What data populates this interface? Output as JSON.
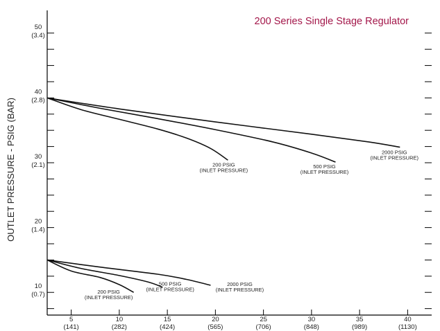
{
  "chart_data": {
    "type": "line",
    "title": "200 Series Single Stage Regulator",
    "title_color": "#a3174a",
    "ylabel": "OUTLET PRESSURE - PSIG (BAR)",
    "xlabel": "",
    "xlim": [
      2.5,
      42.5
    ],
    "ylim": [
      6.5,
      53.5
    ],
    "grid": false,
    "x_ticks": [
      {
        "value": 5,
        "label": "5",
        "sub": "(141)"
      },
      {
        "value": 10,
        "label": "10",
        "sub": "(282)"
      },
      {
        "value": 15,
        "label": "15",
        "sub": "(424)"
      },
      {
        "value": 20,
        "label": "20",
        "sub": "(565)"
      },
      {
        "value": 25,
        "label": "25",
        "sub": "(706)"
      },
      {
        "value": 30,
        "label": "30",
        "sub": "(848)"
      },
      {
        "value": 35,
        "label": "35",
        "sub": "(989)"
      },
      {
        "value": 40,
        "label": "40",
        "sub": "(1130)"
      }
    ],
    "y_ticks": [
      {
        "value": 10,
        "label": "10",
        "sub": "(0.7)"
      },
      {
        "value": 20,
        "label": "20",
        "sub": "(1.4)"
      },
      {
        "value": 30,
        "label": "30",
        "sub": "(2.1)"
      },
      {
        "value": 40,
        "label": "40",
        "sub": "(2.8)"
      },
      {
        "value": 50,
        "label": "50",
        "sub": "(3.4)"
      }
    ],
    "y_minor_ticks": [
      7.5,
      12.5,
      15,
      17.5,
      22.5,
      25,
      27.5,
      32.5,
      35,
      37.5,
      42.5,
      45,
      47.5
    ],
    "series": [
      {
        "name": "200 PSIG",
        "name_sub": "(INLET PRESSURE)",
        "x": [
          2.5,
          6,
          10,
          14,
          17,
          19.5,
          21.3
        ],
        "y": [
          40,
          38.2,
          36.7,
          35.2,
          33.8,
          32.2,
          30.4
        ]
      },
      {
        "name": "500 PSIG",
        "name_sub": "(INLET PRESSURE)",
        "x": [
          2.5,
          8,
          14,
          20,
          26,
          30,
          32.5
        ],
        "y": [
          40,
          38.4,
          36.8,
          35.1,
          33.2,
          31.5,
          30.1
        ]
      },
      {
        "name": "2000 PSIG",
        "name_sub": "(INLET PRESSURE)",
        "x": [
          2.5,
          10,
          20,
          30,
          36,
          39.2
        ],
        "y": [
          40,
          38.3,
          36.3,
          34.4,
          33.2,
          32.4
        ]
      },
      {
        "name": "200 PSIG",
        "name_sub": "(INLET PRESSURE)",
        "x": [
          2.5,
          5,
          8,
          10,
          11.5
        ],
        "y": [
          15,
          13.3,
          12.3,
          11.2,
          10
        ]
      },
      {
        "name": "500 PSIG",
        "name_sub": "(INLET PRESSURE)",
        "x": [
          2.5,
          6,
          10,
          13,
          14.5
        ],
        "y": [
          15,
          13.7,
          12.6,
          11.6,
          10.8
        ]
      },
      {
        "name": "2000 PSIG",
        "name_sub": "(INLET PRESSURE)",
        "x": [
          2.5,
          8,
          14,
          17,
          19.5
        ],
        "y": [
          15,
          13.9,
          12.8,
          12,
          11.1
        ]
      }
    ]
  }
}
